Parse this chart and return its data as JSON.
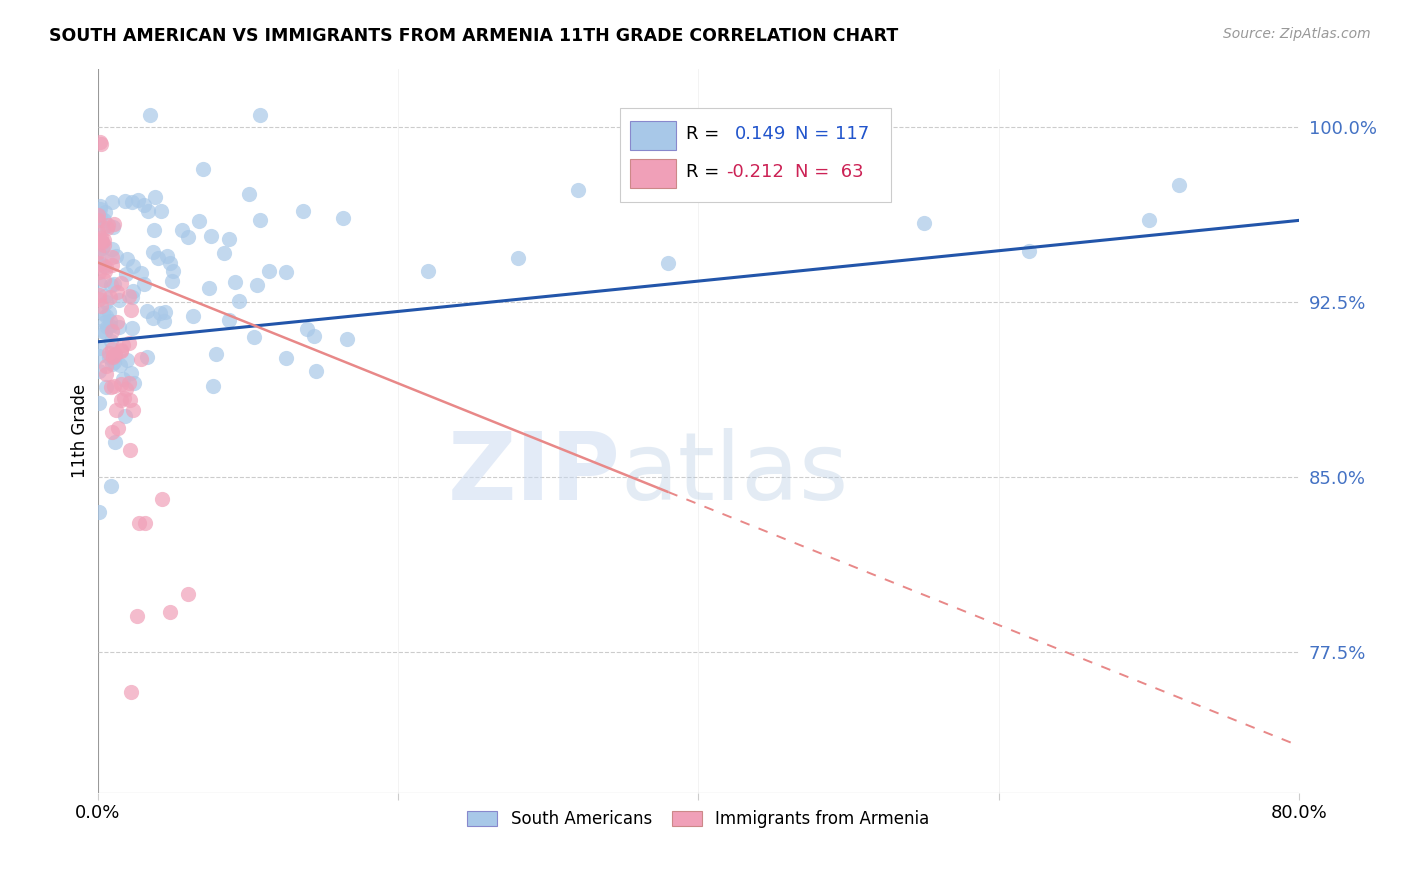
{
  "title": "SOUTH AMERICAN VS IMMIGRANTS FROM ARMENIA 11TH GRADE CORRELATION CHART",
  "source": "Source: ZipAtlas.com",
  "ylabel": "11th Grade",
  "ytick_labels": [
    "100.0%",
    "92.5%",
    "85.0%",
    "77.5%"
  ],
  "ytick_values": [
    1.0,
    0.925,
    0.85,
    0.775
  ],
  "x_min": 0.0,
  "x_max": 0.8,
  "y_min": 0.715,
  "y_max": 1.025,
  "blue_R": 0.149,
  "blue_N": 117,
  "pink_R": -0.212,
  "pink_N": 63,
  "blue_color": "#a8c8e8",
  "pink_color": "#f0a0b8",
  "blue_line_color": "#2255aa",
  "pink_line_color": "#e88888",
  "watermark_zip": "ZIP",
  "watermark_atlas": "atlas",
  "blue_trend": [
    0.0,
    0.8,
    0.908,
    0.96
  ],
  "pink_trend": [
    0.0,
    0.8,
    0.942,
    0.735
  ]
}
